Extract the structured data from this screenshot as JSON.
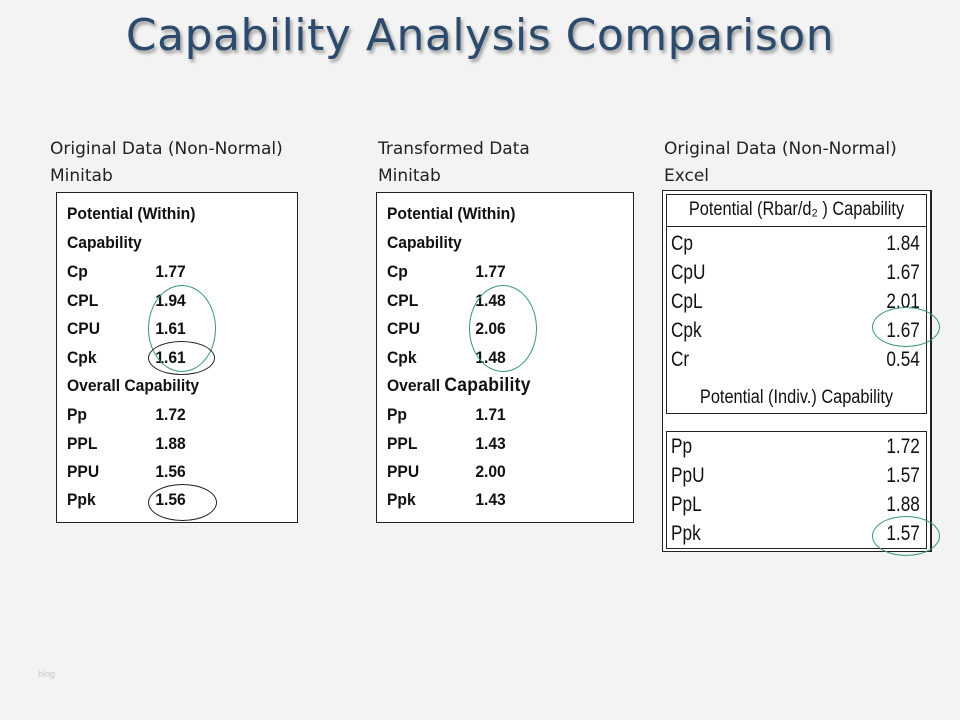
{
  "title": "Capability Analysis Comparison",
  "columns": [
    {
      "heading": "Original Data (Non-Normal)",
      "subheading": "Minitab"
    },
    {
      "heading": "Transformed Data",
      "subheading": "Minitab"
    },
    {
      "heading": "Original Data (Non-Normal)",
      "subheading": "Excel"
    }
  ],
  "minitab_original": {
    "section1_line1": "Potential (Within)",
    "section1_line2": "Capability",
    "rows1": [
      {
        "label": "Cp",
        "value": "1.77"
      },
      {
        "label": "CPL",
        "value": "1.94"
      },
      {
        "label": "CPU",
        "value": "1.61"
      },
      {
        "label": "Cpk",
        "value": "1.61"
      }
    ],
    "section2": "Overall Capability",
    "rows2": [
      {
        "label": "Pp",
        "value": "1.72"
      },
      {
        "label": "PPL",
        "value": "1.88"
      },
      {
        "label": "PPU",
        "value": "1.56"
      },
      {
        "label": "Ppk",
        "value": "1.56"
      }
    ]
  },
  "minitab_transformed": {
    "section1_line1": "Potential (Within)",
    "section1_line2": "Capability",
    "rows1": [
      {
        "label": "Cp",
        "value": "1.77"
      },
      {
        "label": "CPL",
        "value": "1.48"
      },
      {
        "label": "CPU",
        "value": "2.06"
      },
      {
        "label": "Cpk",
        "value": "1.48"
      }
    ],
    "section2_a": "Overall",
    "section2_b": "Capability",
    "rows2": [
      {
        "label": "Pp",
        "value": "1.71"
      },
      {
        "label": "PPL",
        "value": "1.43"
      },
      {
        "label": "PPU",
        "value": "2.00"
      },
      {
        "label": "Ppk",
        "value": "1.43"
      }
    ]
  },
  "excel": {
    "header1": "Potential (Rbar/d₂ ) Capability",
    "rows1": [
      {
        "label": "Cp",
        "value": "1.84"
      },
      {
        "label": "CpU",
        "value": "1.67"
      },
      {
        "label": "CpL",
        "value": "2.01"
      },
      {
        "label": "Cpk",
        "value": "1.67"
      },
      {
        "label": "Cr",
        "value": "0.54"
      }
    ],
    "header2": "Potential (Indiv.) Capability",
    "rows2": [
      {
        "label": "Pp",
        "value": "1.72"
      },
      {
        "label": "PpU",
        "value": "1.57"
      },
      {
        "label": "PpL",
        "value": "1.88"
      },
      {
        "label": "Ppk",
        "value": "1.57"
      }
    ]
  },
  "watermark": "blog",
  "colors": {
    "title": "#2c4a6b",
    "highlight_circle": "#3a9a6a",
    "background": "#f3f3f3"
  }
}
